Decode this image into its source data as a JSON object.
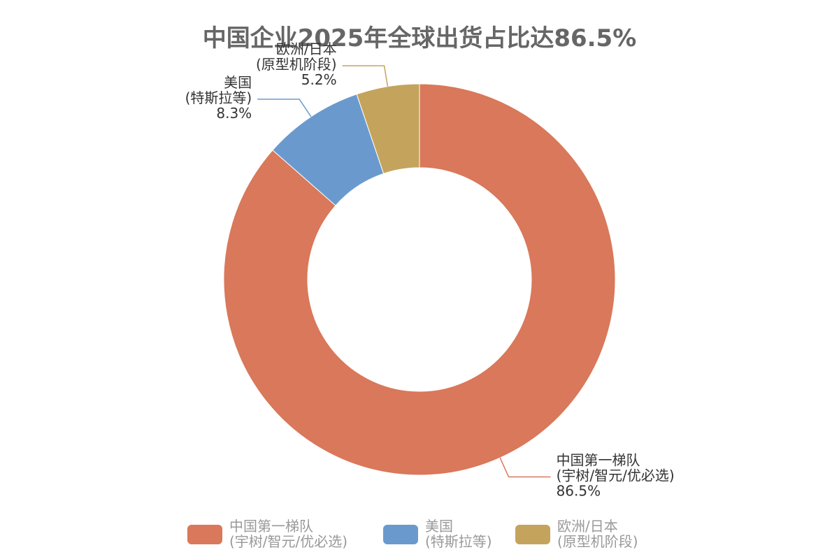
{
  "chart_data": {
    "type": "donut",
    "title": "中国企业2025年全球出货占比达86.5%",
    "categories": [
      "中国第一梯队\n(宇树/智元/优必选)",
      "美国\n(特斯拉等)",
      "欧洲/日本\n(原型机阶段)"
    ],
    "values": [
      86.5,
      8.3,
      5.2
    ],
    "value_labels": [
      "86.5%",
      "8.3%",
      "5.2%"
    ],
    "colors": [
      "#d9785a",
      "#6a9acd",
      "#c4a45c"
    ],
    "legend": "bottom"
  }
}
